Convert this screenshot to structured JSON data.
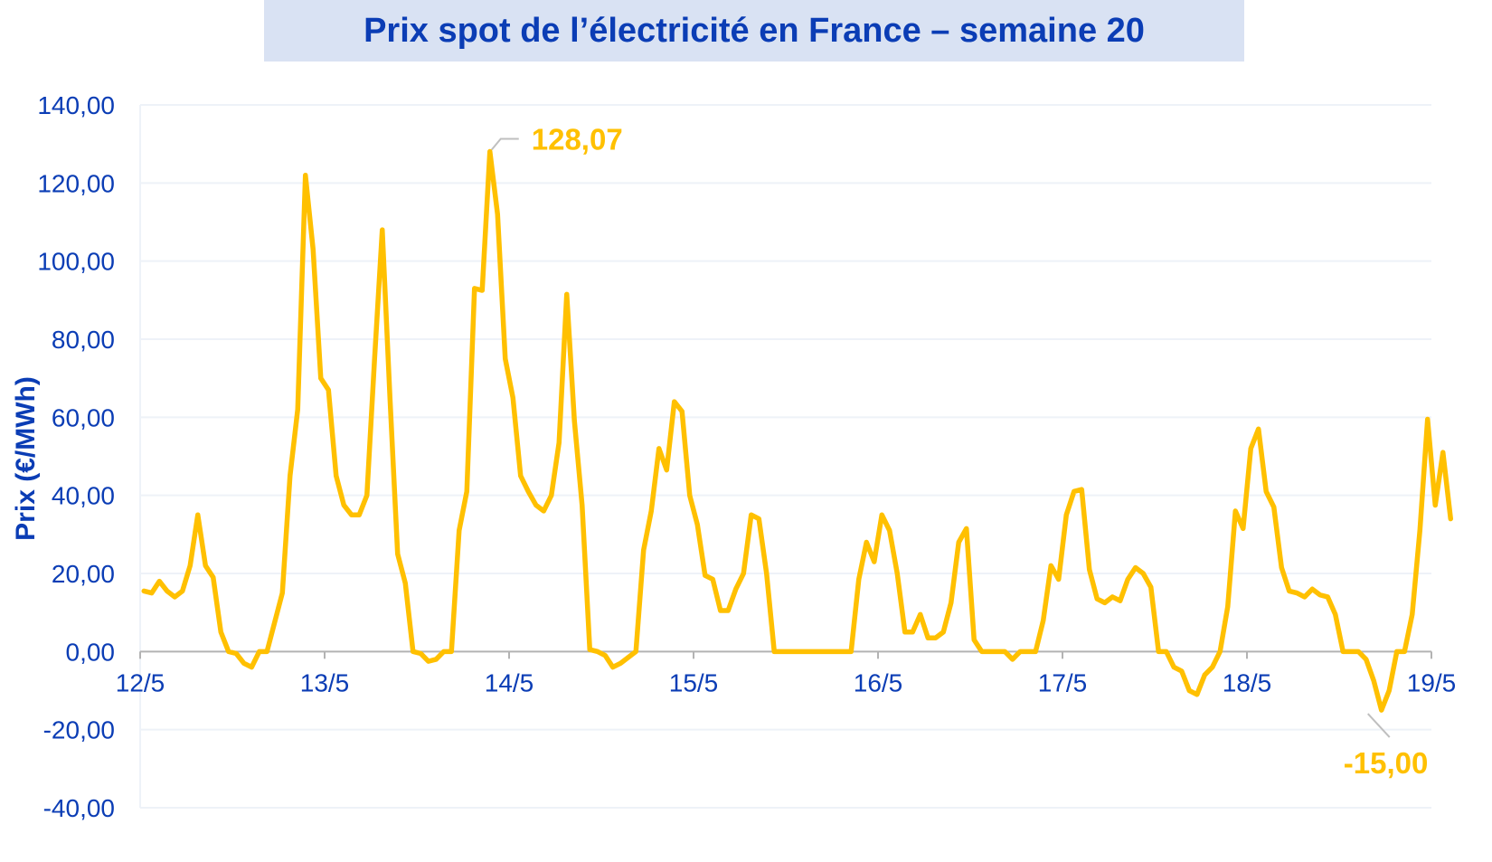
{
  "title": "Prix spot de l’électricité en France – semaine 20",
  "colors": {
    "line": "#ffc000",
    "text": "#0b3db5",
    "title_bg": "#d9e2f3",
    "grid": "#eef2f8"
  },
  "chart_data": {
    "type": "line",
    "title": "Prix spot de l’électricité en France – semaine 20",
    "ylabel": "Prix (€/MWh)",
    "xlabel": "",
    "ylim": [
      -40,
      140
    ],
    "yticks": [
      "140,00",
      "120,00",
      "100,00",
      "80,00",
      "60,00",
      "40,00",
      "20,00",
      "0,00",
      "-20,00",
      "-40,00"
    ],
    "ytick_values": [
      140,
      120,
      100,
      80,
      60,
      40,
      20,
      0,
      -20,
      -40
    ],
    "xlim": [
      0,
      168
    ],
    "xticks": [
      "12/5",
      "13/5",
      "14/5",
      "15/5",
      "16/5",
      "17/5",
      "18/5",
      "19/5"
    ],
    "xtick_values": [
      0,
      24,
      48,
      72,
      96,
      120,
      144,
      168
    ],
    "grid": true,
    "series": [
      {
        "values": [
          15.5,
          15,
          18,
          15.5,
          14,
          15.5,
          22,
          35,
          22,
          19,
          5,
          0,
          -0.5,
          -3,
          -4,
          0,
          0,
          7.5,
          15,
          45,
          62,
          122,
          103,
          70,
          67,
          45,
          37.5,
          35,
          35,
          40,
          75,
          108,
          65,
          25,
          17.5,
          0,
          -0.5,
          -2.5,
          -2,
          0,
          0,
          31,
          41,
          93,
          92.5,
          128.07,
          112,
          75,
          65,
          45,
          41,
          37.5,
          36,
          40,
          53.5,
          91.5,
          59,
          37.5,
          0.5,
          0,
          -1,
          -4,
          -3,
          -1.5,
          0,
          26,
          36,
          52,
          46.5,
          64,
          61.5,
          40,
          32.5,
          19.5,
          18.5,
          10.5,
          10.5,
          16,
          20,
          35,
          34,
          20,
          0,
          0,
          0,
          0,
          0,
          0,
          0,
          0,
          0,
          0,
          0,
          18.5,
          28,
          23,
          35,
          31,
          20,
          5,
          5,
          9.5,
          3.5,
          3.5,
          5,
          12.5,
          28,
          31.5,
          3,
          0,
          0,
          0,
          0,
          -2,
          0,
          0,
          0,
          8,
          22,
          18.5,
          35,
          41,
          41.5,
          21,
          13.5,
          12.5,
          14,
          13,
          18.5,
          21.5,
          20,
          16.5,
          0,
          0,
          -4,
          -5,
          -10,
          -11,
          -6,
          -4,
          0,
          11.5,
          36,
          31.5,
          52,
          57,
          41,
          37,
          21.5,
          15.5,
          15,
          14,
          16,
          14.5,
          14,
          9.5,
          0,
          0,
          0,
          -2,
          -7.5,
          -15,
          -10,
          0,
          0,
          9.5,
          31,
          59.5,
          37.5,
          51,
          34
        ]
      }
    ],
    "annotations": [
      {
        "label": "128,07",
        "x": 45,
        "y": 128.07
      },
      {
        "label": "-15,00",
        "x": 159,
        "y": -15.0
      }
    ]
  }
}
